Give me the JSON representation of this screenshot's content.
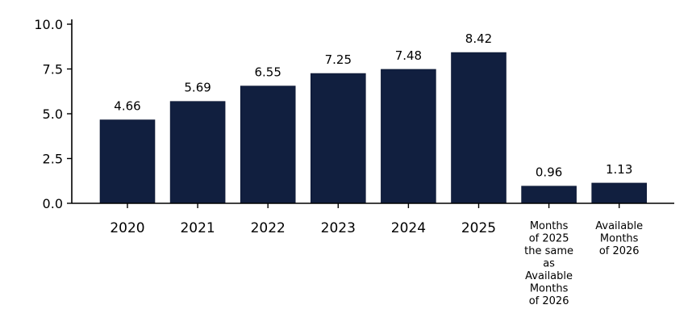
{
  "chart_data": {
    "type": "bar",
    "categories": [
      "2020",
      "2021",
      "2022",
      "2023",
      "2024",
      "2025",
      "Months\nof 2025\nthe same\nas\nAvailable\nMonths\nof 2026",
      "Available\nMonths\nof 2026"
    ],
    "values": [
      4.66,
      5.69,
      6.55,
      7.25,
      7.48,
      8.42,
      0.96,
      1.13
    ],
    "value_labels": [
      "4.66",
      "5.69",
      "6.55",
      "7.25",
      "7.48",
      "8.42",
      "0.96",
      "1.13"
    ],
    "title": "",
    "xlabel": "",
    "ylabel": "",
    "ylim": [
      0,
      10
    ],
    "yticks": [
      0.0,
      2.5,
      5.0,
      7.5,
      10.0
    ],
    "ytick_labels": [
      "0.0",
      "2.5",
      "5.0",
      "7.5",
      "10.0"
    ],
    "bar_color": "#111f3f",
    "grid": false,
    "legend": "none"
  }
}
